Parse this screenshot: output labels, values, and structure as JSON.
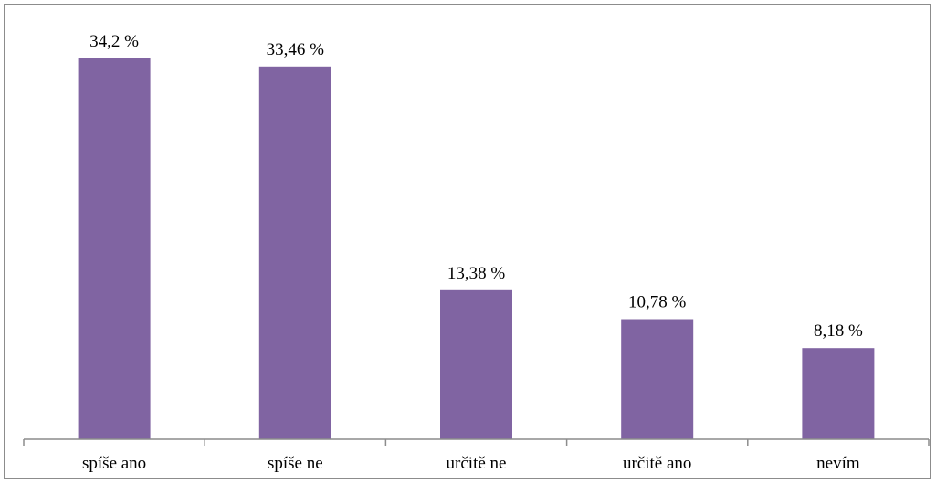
{
  "chart_data": {
    "type": "bar",
    "categories": [
      "spíše ano",
      "spíše ne",
      "určitě ne",
      "určitě ano",
      "nevím"
    ],
    "values": [
      34.2,
      33.46,
      13.38,
      10.78,
      8.18
    ],
    "data_labels": [
      "34,2 %",
      "33,46 %",
      "13,38 %",
      "10,78 %",
      "8,18 %"
    ],
    "title": "",
    "xlabel": "",
    "ylabel": "",
    "ylim": [
      0,
      37.5
    ],
    "grid": false,
    "legend": "none",
    "colors": {
      "bar": "#8064A2",
      "axis": "#8C8C8C",
      "frame": "#8C8C8C",
      "text": "#000000"
    }
  }
}
